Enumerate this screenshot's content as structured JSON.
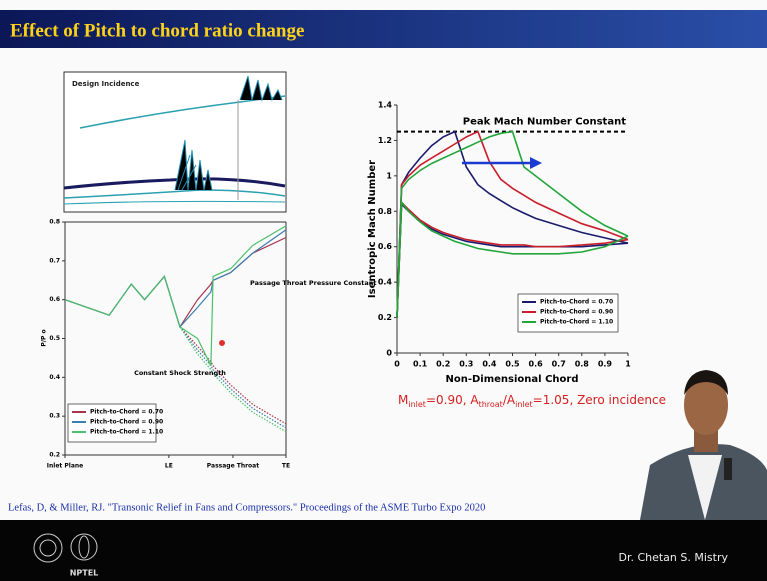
{
  "header": {
    "title": "Effect of Pitch to chord ratio change"
  },
  "diagram": {
    "label": "Design Incidence"
  },
  "chart_data": [
    {
      "type": "line",
      "y_label": "Isentropic Mach Number",
      "x_label": "Non-Dimensional Chord",
      "xlim": [
        0,
        1
      ],
      "xticks": [
        0,
        0.1,
        0.2,
        0.3,
        0.4,
        0.5,
        0.6,
        0.7,
        0.8,
        0.9,
        1
      ],
      "ylim": [
        0,
        1.4
      ],
      "yticks": [
        0,
        0.2,
        0.4,
        0.6,
        0.8,
        1,
        1.2,
        1.4
      ],
      "reference_line": {
        "value": 1.25,
        "label": "Peak Mach Number Constant"
      },
      "x": [
        0,
        0.02,
        0.05,
        0.1,
        0.15,
        0.2,
        0.25,
        0.3,
        0.35,
        0.4,
        0.45,
        0.5,
        0.55,
        0.6,
        0.7,
        0.8,
        0.9,
        1
      ],
      "series": [
        {
          "name": "Pitch-to-Chord = 0.70",
          "color": "#1a1a6e",
          "values": [
            0.2,
            0.95,
            1.02,
            1.1,
            1.17,
            1.22,
            1.25,
            1.05,
            0.95,
            0.9,
            0.86,
            0.82,
            0.79,
            0.76,
            0.72,
            0.68,
            0.65,
            0.62
          ],
          "lower_values": [
            0.2,
            0.84,
            0.8,
            0.74,
            0.7,
            0.67,
            0.65,
            0.63,
            0.62,
            0.61,
            0.6,
            0.6,
            0.6,
            0.6,
            0.6,
            0.6,
            0.61,
            0.62
          ]
        },
        {
          "name": "Pitch-to-Chord = 0.90",
          "color": "#c81e2a",
          "values": [
            0.2,
            0.95,
            1.0,
            1.06,
            1.1,
            1.14,
            1.18,
            1.22,
            1.25,
            1.08,
            0.98,
            0.93,
            0.89,
            0.85,
            0.79,
            0.73,
            0.69,
            0.64
          ],
          "lower_values": [
            0.2,
            0.85,
            0.81,
            0.75,
            0.71,
            0.68,
            0.66,
            0.64,
            0.63,
            0.62,
            0.61,
            0.61,
            0.61,
            0.6,
            0.6,
            0.61,
            0.62,
            0.64
          ]
        },
        {
          "name": "Pitch-to-Chord = 1.10",
          "color": "#22a63a",
          "values": [
            0.2,
            0.93,
            0.98,
            1.03,
            1.07,
            1.1,
            1.13,
            1.16,
            1.19,
            1.22,
            1.24,
            1.25,
            1.05,
            1.0,
            0.9,
            0.8,
            0.72,
            0.66
          ],
          "lower_values": [
            0.2,
            0.85,
            0.8,
            0.74,
            0.69,
            0.66,
            0.63,
            0.61,
            0.59,
            0.58,
            0.57,
            0.56,
            0.56,
            0.56,
            0.56,
            0.57,
            0.6,
            0.66
          ]
        }
      ],
      "caption": [
        "M",
        "inlet",
        "=0.90, A",
        "throat",
        "/A",
        "inlet",
        "=1.05, Zero incidence"
      ]
    },
    {
      "type": "line",
      "y_label": "P/P o",
      "xlim": [
        0,
        1
      ],
      "xticks": [
        {
          "value": 0,
          "label": "Inlet Plane"
        },
        {
          "value": 0.47,
          "label": "LE"
        },
        {
          "value": 0.76,
          "label": "Passage Throat"
        },
        {
          "value": 1,
          "label": "TE"
        }
      ],
      "ylim": [
        0.2,
        0.8
      ],
      "yticks": [
        0.2,
        0.3,
        0.4,
        0.5,
        0.6,
        0.7,
        0.8
      ],
      "annotations": [
        "Passage Throat Pressure Constant",
        "Constant Shock Strength"
      ],
      "x": [
        0,
        0.1,
        0.2,
        0.3,
        0.36,
        0.45,
        0.52,
        0.6,
        0.66,
        0.67,
        0.75,
        0.85,
        1
      ],
      "series": [
        {
          "name": "Pitch-to-Chord = 0.70",
          "color": "#a8334a",
          "values": [
            0.6,
            0.58,
            0.56,
            0.64,
            0.6,
            0.66,
            0.53,
            0.6,
            0.64,
            0.65,
            0.67,
            0.72,
            0.76
          ],
          "lower_values": [
            null,
            null,
            null,
            null,
            null,
            null,
            0.53,
            0.48,
            0.44,
            0.43,
            0.38,
            0.33,
            0.28
          ]
        },
        {
          "name": "Pitch-to-Chord = 0.90",
          "color": "#3a7fb0",
          "values": [
            0.6,
            0.58,
            0.56,
            0.64,
            0.6,
            0.66,
            0.53,
            0.58,
            0.62,
            0.65,
            0.67,
            0.72,
            0.78
          ],
          "lower_values": [
            null,
            null,
            null,
            null,
            null,
            null,
            0.53,
            0.47,
            0.43,
            0.42,
            0.37,
            0.32,
            0.27
          ]
        },
        {
          "name": "Pitch-to-Chord = 1.10",
          "color": "#4bbf6a",
          "values": [
            0.6,
            0.58,
            0.56,
            0.64,
            0.6,
            0.66,
            0.53,
            0.5,
            0.43,
            0.66,
            0.68,
            0.74,
            0.79
          ],
          "lower_values": [
            null,
            null,
            null,
            null,
            null,
            null,
            0.53,
            0.46,
            0.42,
            0.41,
            0.36,
            0.31,
            0.26
          ]
        }
      ]
    }
  ],
  "citation": "Lefas, D, & Miller, RJ. \"Transonic Relief in Fans and Compressors.\" Proceedings of the ASME Turbo Expo 2020",
  "footer": {
    "logo_text": "NPTEL",
    "presenter": "Dr. Chetan S. Mistry"
  }
}
